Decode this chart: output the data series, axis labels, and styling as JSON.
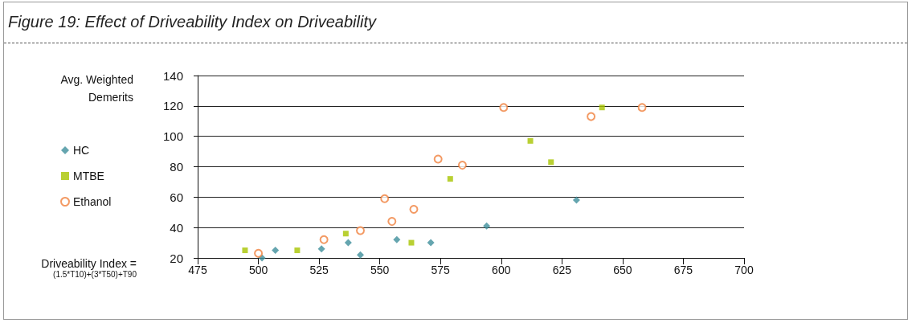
{
  "chart_data": {
    "type": "scatter",
    "title": "Figure 19: Effect of Driveability Index on Driveability",
    "ylabel": "Avg. Weighted Demerits",
    "xlabel": "Driveability Index = (1.5*T10)+(3*T50)+T90",
    "series": [
      {
        "name": "HC",
        "color": "#3f8e9b",
        "marker": "diamond",
        "x": [
          501.5,
          507,
          526,
          537,
          542,
          557,
          571,
          594,
          631
        ],
        "values": [
          20,
          25,
          26,
          30,
          22,
          32,
          30,
          41,
          58
        ]
      },
      {
        "name": "MTBE",
        "color": "#a8c400",
        "marker": "square",
        "x": [
          494.5,
          516,
          536,
          563,
          579,
          612,
          620.5,
          641.5
        ],
        "values": [
          25,
          25,
          36,
          30,
          72,
          97,
          83,
          119
        ]
      },
      {
        "name": "Ethanol",
        "color": "#f0813d",
        "marker": "circle",
        "x": [
          500,
          527,
          542,
          552,
          555,
          564,
          574,
          584,
          601,
          637,
          658
        ],
        "values": [
          23,
          32,
          38,
          59,
          44,
          52,
          85,
          81,
          119,
          113,
          119
        ]
      }
    ],
    "xlim": [
      475,
      700
    ],
    "xticks": [
      475,
      500,
      525,
      550,
      575,
      600,
      625,
      650,
      675,
      700
    ],
    "ylim": [
      20,
      140
    ],
    "yticks": [
      20,
      40,
      60,
      80,
      100,
      120,
      140
    ],
    "grid": "y",
    "legend": "left"
  }
}
